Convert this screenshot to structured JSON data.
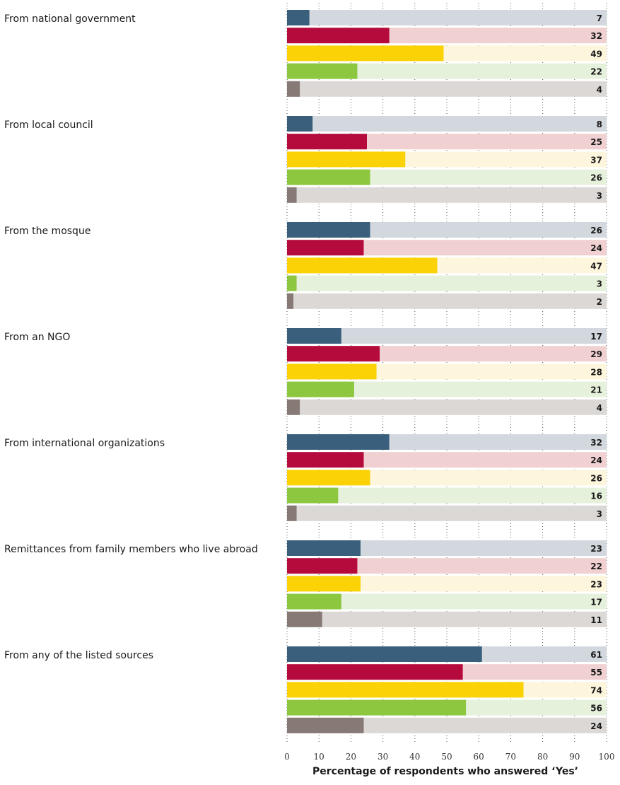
{
  "chart_data": {
    "type": "bar",
    "orientation": "horizontal",
    "categories": [
      "From national government",
      "From local council",
      "From the mosque",
      "From an NGO",
      "From international organizations",
      "Remittances from family members who live abroad",
      "From any of the listed sources"
    ],
    "series": [
      {
        "values": [
          7,
          8,
          26,
          17,
          32,
          23,
          61
        ],
        "color": "#3a5f7d",
        "track_color": "#d3d8de"
      },
      {
        "values": [
          32,
          25,
          24,
          29,
          24,
          22,
          55
        ],
        "color": "#b50a3c",
        "track_color": "#f0d0d0"
      },
      {
        "values": [
          49,
          37,
          47,
          28,
          26,
          23,
          74
        ],
        "color": "#fad205",
        "track_color": "#fdf5dc"
      },
      {
        "values": [
          22,
          26,
          3,
          21,
          16,
          17,
          56
        ],
        "color": "#8dc63f",
        "track_color": "#e6f1dc"
      },
      {
        "values": [
          4,
          3,
          2,
          4,
          3,
          11,
          24
        ],
        "color": "#877a76",
        "track_color": "#dcd8d6"
      }
    ],
    "xlabel": "Percentage of respondents who answered ‘Yes’",
    "xlim": [
      0,
      100
    ],
    "xticks": [
      "0",
      "10",
      "20",
      "30",
      "40",
      "50",
      "60",
      "70",
      "80",
      "90",
      "100"
    ],
    "grid": "vertical dotted",
    "legend": "none"
  }
}
